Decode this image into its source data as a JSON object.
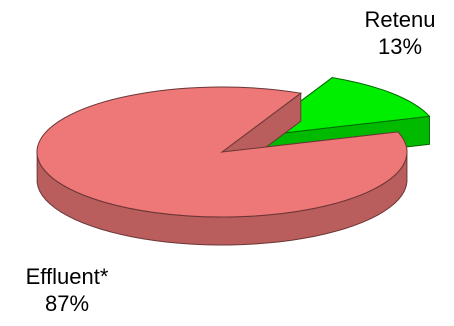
{
  "chart_data": {
    "type": "pie",
    "style": "3d-exploded",
    "slices": [
      {
        "label": "Retenu",
        "value": 13,
        "value_label": "13%",
        "color": "#00ee00",
        "exploded": true
      },
      {
        "label": "Effluent*",
        "value": 87,
        "value_label": "87%",
        "color": "#ee7777",
        "exploded": false
      }
    ],
    "legend": "none"
  }
}
